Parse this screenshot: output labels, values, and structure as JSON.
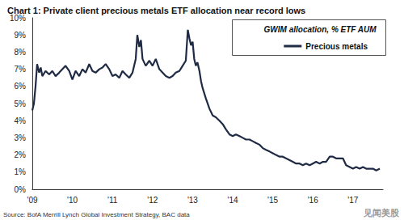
{
  "chart_data": {
    "type": "line",
    "title": "Chart 1: Private client precious metals ETF allocation near record lows",
    "subtitle": "GWIM allocation, % ETF AUM",
    "source": "Source: BofA Merrill Lynch Global Investment Strategy, BAC data",
    "watermark": "见闻美股",
    "x": [
      2009.0,
      2009.04,
      2009.08,
      2009.12,
      2009.17,
      2009.21,
      2009.25,
      2009.33,
      2009.42,
      2009.5,
      2009.58,
      2009.67,
      2009.75,
      2009.83,
      2009.92,
      2010.0,
      2010.08,
      2010.17,
      2010.25,
      2010.33,
      2010.42,
      2010.5,
      2010.58,
      2010.67,
      2010.75,
      2010.83,
      2010.92,
      2011.0,
      2011.08,
      2011.17,
      2011.25,
      2011.33,
      2011.42,
      2011.5,
      2011.58,
      2011.62,
      2011.67,
      2011.71,
      2011.75,
      2011.83,
      2011.92,
      2012.0,
      2012.08,
      2012.17,
      2012.25,
      2012.33,
      2012.42,
      2012.5,
      2012.58,
      2012.67,
      2012.75,
      2012.83,
      2012.88,
      2012.92,
      2012.96,
      2013.0,
      2013.04,
      2013.08,
      2013.12,
      2013.17,
      2013.21,
      2013.25,
      2013.33,
      2013.42,
      2013.5,
      2013.58,
      2013.67,
      2013.75,
      2013.83,
      2013.92,
      2014.0,
      2014.08,
      2014.17,
      2014.25,
      2014.33,
      2014.42,
      2014.5,
      2014.58,
      2014.67,
      2014.75,
      2014.83,
      2014.92,
      2015.0,
      2015.08,
      2015.17,
      2015.25,
      2015.33,
      2015.42,
      2015.5,
      2015.58,
      2015.67,
      2015.75,
      2015.83,
      2015.92,
      2016.0,
      2016.08,
      2016.17,
      2016.25,
      2016.33,
      2016.42,
      2016.5,
      2016.58,
      2016.67,
      2016.75,
      2016.83,
      2016.92,
      2017.0,
      2017.08,
      2017.17,
      2017.25,
      2017.33,
      2017.42,
      2017.5,
      2017.58,
      2017.67
    ],
    "series": [
      {
        "name": "Precious metals",
        "color": "#1f2a44",
        "values": [
          4.6,
          5.0,
          6.0,
          7.3,
          6.8,
          7.1,
          6.6,
          6.9,
          6.7,
          6.9,
          6.6,
          6.8,
          7.0,
          7.2,
          6.9,
          6.4,
          6.9,
          6.6,
          7.0,
          6.8,
          7.3,
          6.9,
          6.8,
          7.0,
          7.1,
          7.3,
          7.0,
          6.6,
          6.7,
          6.5,
          6.9,
          6.7,
          6.5,
          6.8,
          7.6,
          9.0,
          8.3,
          8.7,
          7.6,
          7.2,
          7.5,
          7.2,
          7.6,
          7.0,
          6.8,
          6.6,
          6.5,
          6.6,
          6.8,
          6.9,
          7.2,
          7.5,
          9.3,
          8.8,
          8.4,
          8.6,
          7.6,
          7.2,
          7.4,
          6.9,
          6.3,
          5.9,
          5.3,
          4.7,
          4.3,
          4.2,
          4.0,
          3.8,
          3.5,
          3.2,
          3.1,
          3.2,
          3.1,
          3.0,
          2.9,
          2.9,
          2.8,
          2.7,
          2.6,
          2.4,
          2.3,
          2.2,
          2.1,
          2.0,
          1.9,
          1.9,
          1.8,
          1.7,
          1.6,
          1.5,
          1.5,
          1.4,
          1.5,
          1.4,
          1.5,
          1.6,
          1.5,
          1.6,
          1.6,
          1.9,
          1.9,
          1.8,
          1.8,
          1.8,
          1.4,
          1.3,
          1.2,
          1.3,
          1.2,
          1.3,
          1.2,
          1.2,
          1.2,
          1.1,
          1.2
        ]
      }
    ],
    "xlim": [
      2009,
      2017.75
    ],
    "xticks": [
      {
        "value": 2009,
        "label": "'09"
      },
      {
        "value": 2010,
        "label": "'10"
      },
      {
        "value": 2011,
        "label": "'11"
      },
      {
        "value": 2012,
        "label": "'12"
      },
      {
        "value": 2013,
        "label": "'13"
      },
      {
        "value": 2014,
        "label": "'14"
      },
      {
        "value": 2015,
        "label": "'15"
      },
      {
        "value": 2016,
        "label": "'16"
      },
      {
        "value": 2017,
        "label": "'17"
      }
    ],
    "ylim": [
      0,
      10
    ],
    "yticks": [
      {
        "value": 0,
        "label": "0%"
      },
      {
        "value": 1,
        "label": "1%"
      },
      {
        "value": 2,
        "label": "2%"
      },
      {
        "value": 3,
        "label": "3%"
      },
      {
        "value": 4,
        "label": "4%"
      },
      {
        "value": 5,
        "label": "5%"
      },
      {
        "value": 6,
        "label": "6%"
      },
      {
        "value": 7,
        "label": "7%"
      },
      {
        "value": 8,
        "label": "8%"
      },
      {
        "value": 9,
        "label": "9%"
      },
      {
        "value": 10,
        "label": "10%"
      }
    ],
    "grid": false,
    "legend": "upper right"
  }
}
